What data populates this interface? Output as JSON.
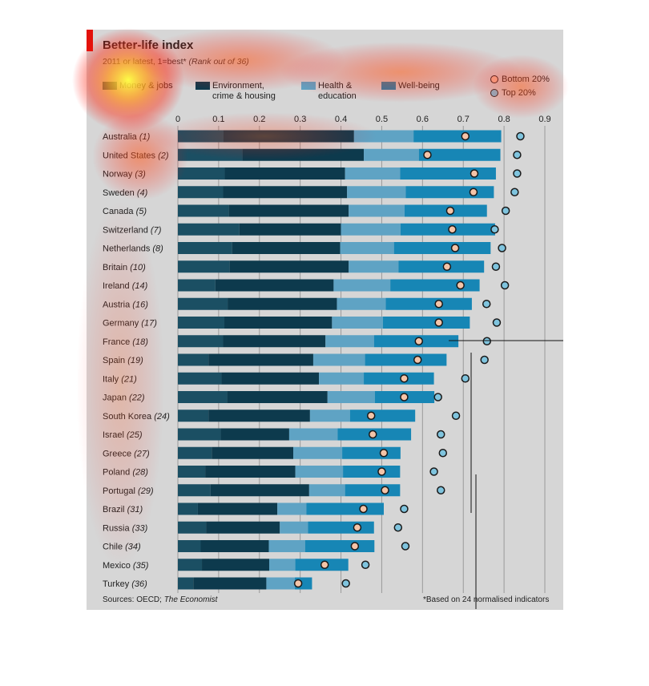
{
  "header": {
    "title": "Better-life index",
    "subtitle_main": "2011 or latest, 1=best*",
    "subtitle_ital": "(Rank out of 36)"
  },
  "legend": {
    "items": [
      {
        "label_line1": "Money & jobs",
        "label_line2": "",
        "color": "#1b4f63"
      },
      {
        "label_line1": "Environment,",
        "label_line2": "crime & housing",
        "color": "#0d3a4d"
      },
      {
        "label_line1": "Health &",
        "label_line2": "education",
        "color": "#5fa3c4"
      },
      {
        "label_line1": "Well-being",
        "label_line2": "",
        "color": "#1786b5"
      }
    ],
    "bottom20": "Bottom 20%",
    "top20": "Top 20%"
  },
  "footer": {
    "sources_prefix": "Sources: OECD; ",
    "sources_ital": "The Economist",
    "footnote": "*Based on 24 normalised indicators"
  },
  "chart_data": {
    "type": "bar",
    "stacked": true,
    "orientation": "horizontal",
    "xlim": [
      0,
      0.9
    ],
    "xticks": [
      "0",
      "0.1",
      "0.2",
      "0.3",
      "0.4",
      "0.5",
      "0.6",
      "0.7",
      "0.8",
      "0.9"
    ],
    "grid": true,
    "categories": [
      {
        "name": "Australia",
        "rank": "(1)"
      },
      {
        "name": "United States",
        "rank": "(2)"
      },
      {
        "name": "Norway",
        "rank": "(3)"
      },
      {
        "name": "Sweden",
        "rank": "(4)"
      },
      {
        "name": "Canada",
        "rank": "(5)"
      },
      {
        "name": "Switzerland",
        "rank": "(7)"
      },
      {
        "name": "Netherlands",
        "rank": "(8)"
      },
      {
        "name": "Britain",
        "rank": "(10)"
      },
      {
        "name": "Ireland",
        "rank": "(14)"
      },
      {
        "name": "Austria",
        "rank": "(16)"
      },
      {
        "name": "Germany",
        "rank": "(17)"
      },
      {
        "name": "France",
        "rank": "(18)"
      },
      {
        "name": "Spain",
        "rank": "(19)"
      },
      {
        "name": "Italy",
        "rank": "(21)"
      },
      {
        "name": "Japan",
        "rank": "(22)"
      },
      {
        "name": "South Korea",
        "rank": "(24)"
      },
      {
        "name": "Israel",
        "rank": "(25)"
      },
      {
        "name": "Greece",
        "rank": "(27)"
      },
      {
        "name": "Poland",
        "rank": "(28)"
      },
      {
        "name": "Portugal",
        "rank": "(29)"
      },
      {
        "name": "Brazil",
        "rank": "(31)"
      },
      {
        "name": "Russia",
        "rank": "(33)"
      },
      {
        "name": "Chile",
        "rank": "(34)"
      },
      {
        "name": "Mexico",
        "rank": "(35)"
      },
      {
        "name": "Turkey",
        "rank": "(36)"
      }
    ],
    "series": [
      {
        "name": "Money & jobs",
        "color": "#1b4f63",
        "values": [
          0.112,
          0.158,
          0.115,
          0.111,
          0.125,
          0.151,
          0.133,
          0.127,
          0.092,
          0.122,
          0.114,
          0.111,
          0.075,
          0.107,
          0.121,
          0.075,
          0.105,
          0.083,
          0.067,
          0.08,
          0.049,
          0.069,
          0.056,
          0.059,
          0.038
        ]
      },
      {
        "name": "Environment, crime & housing",
        "color": "#0d3a4d",
        "values": [
          0.32,
          0.298,
          0.295,
          0.304,
          0.294,
          0.249,
          0.265,
          0.292,
          0.29,
          0.268,
          0.264,
          0.251,
          0.257,
          0.239,
          0.246,
          0.249,
          0.168,
          0.2,
          0.221,
          0.242,
          0.195,
          0.181,
          0.167,
          0.165,
          0.179
        ]
      },
      {
        "name": "Health & education",
        "color": "#5fa3c4",
        "values": [
          0.146,
          0.135,
          0.135,
          0.144,
          0.137,
          0.146,
          0.132,
          0.122,
          0.139,
          0.12,
          0.125,
          0.119,
          0.127,
          0.11,
          0.116,
          0.098,
          0.119,
          0.12,
          0.117,
          0.088,
          0.071,
          0.069,
          0.089,
          0.064,
          0.07
        ]
      },
      {
        "name": "Well-being",
        "color": "#1786b5",
        "values": [
          0.215,
          0.2,
          0.235,
          0.216,
          0.202,
          0.232,
          0.237,
          0.21,
          0.219,
          0.211,
          0.213,
          0.207,
          0.2,
          0.172,
          0.146,
          0.16,
          0.18,
          0.143,
          0.14,
          0.135,
          0.19,
          0.162,
          0.17,
          0.13,
          0.042
        ]
      }
    ],
    "markers": [
      {
        "type": "bottom20",
        "values": [
          0.705,
          0.612,
          0.727,
          0.725,
          0.668,
          0.673,
          0.68,
          0.66,
          0.693,
          0.64,
          0.64,
          0.591,
          0.588,
          0.555,
          0.555,
          0.474,
          0.478,
          0.505,
          0.5,
          0.508,
          0.455,
          0.44,
          0.434,
          0.36,
          0.295
        ]
      },
      {
        "type": "top20",
        "values": [
          0.84,
          0.832,
          0.832,
          0.826,
          0.804,
          0.777,
          0.795,
          0.78,
          0.802,
          0.757,
          0.782,
          0.758,
          0.752,
          0.705,
          0.638,
          0.682,
          0.645,
          0.65,
          0.628,
          0.645,
          0.555,
          0.54,
          0.558,
          0.46,
          0.412
        ]
      }
    ]
  }
}
